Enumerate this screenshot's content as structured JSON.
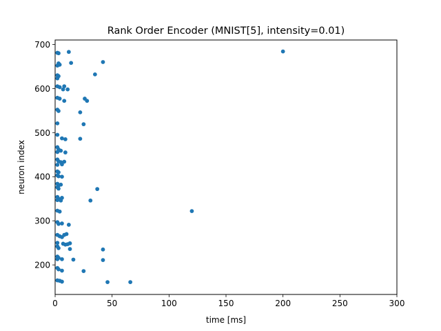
{
  "chart_data": {
    "type": "scatter",
    "title": "Rank Order Encoder (MNIST[5], intensity=0.01)",
    "xlabel": "time [ms]",
    "ylabel": "neuron index",
    "xlim": [
      0,
      300
    ],
    "ylim": [
      133,
      710
    ],
    "xticks": [
      0,
      50,
      100,
      150,
      200,
      250,
      300
    ],
    "yticks": [
      200,
      300,
      400,
      500,
      600,
      700
    ],
    "grid": false,
    "marker_color": "#1f77b4",
    "series": [
      {
        "points": [
          [
            2,
            681
          ],
          [
            3,
            680
          ],
          [
            12,
            683
          ],
          [
            200,
            684
          ],
          [
            3,
            657
          ],
          [
            4,
            654
          ],
          [
            2,
            652
          ],
          [
            14,
            658
          ],
          [
            42,
            660
          ],
          [
            2,
            630
          ],
          [
            3,
            628
          ],
          [
            35,
            632
          ],
          [
            2,
            623
          ],
          [
            2,
            605
          ],
          [
            4,
            603
          ],
          [
            8,
            605
          ],
          [
            7,
            598
          ],
          [
            11,
            598
          ],
          [
            2,
            579
          ],
          [
            4,
            577
          ],
          [
            8,
            572
          ],
          [
            26,
            577
          ],
          [
            28,
            572
          ],
          [
            2,
            552
          ],
          [
            3,
            549
          ],
          [
            22,
            546
          ],
          [
            2,
            521
          ],
          [
            25,
            519
          ],
          [
            2,
            495
          ],
          [
            6,
            487
          ],
          [
            9,
            485
          ],
          [
            22,
            486
          ],
          [
            2,
            467
          ],
          [
            3,
            462
          ],
          [
            5,
            459
          ],
          [
            2,
            456
          ],
          [
            9,
            455
          ],
          [
            2,
            439
          ],
          [
            3,
            435
          ],
          [
            5,
            433
          ],
          [
            8,
            434
          ],
          [
            6,
            428
          ],
          [
            2,
            427
          ],
          [
            2,
            412
          ],
          [
            3,
            410
          ],
          [
            2,
            403
          ],
          [
            3,
            401
          ],
          [
            6,
            400
          ],
          [
            2,
            384
          ],
          [
            3,
            380
          ],
          [
            5,
            382
          ],
          [
            2,
            376
          ],
          [
            3,
            373
          ],
          [
            37,
            372
          ],
          [
            2,
            354
          ],
          [
            3,
            350
          ],
          [
            6,
            352
          ],
          [
            2,
            347
          ],
          [
            5,
            346
          ],
          [
            31,
            346
          ],
          [
            2,
            323
          ],
          [
            4,
            321
          ],
          [
            120,
            322
          ],
          [
            2,
            297
          ],
          [
            3,
            293
          ],
          [
            6,
            294
          ],
          [
            12,
            291
          ],
          [
            2,
            268
          ],
          [
            4,
            265
          ],
          [
            6,
            263
          ],
          [
            8,
            268
          ],
          [
            10,
            270
          ],
          [
            2,
            250
          ],
          [
            7,
            248
          ],
          [
            9,
            246
          ],
          [
            11,
            247
          ],
          [
            13,
            249
          ],
          [
            2,
            242
          ],
          [
            3,
            238
          ],
          [
            13,
            236
          ],
          [
            42,
            235
          ],
          [
            2,
            219
          ],
          [
            3,
            216
          ],
          [
            2,
            213
          ],
          [
            6,
            213
          ],
          [
            16,
            212
          ],
          [
            42,
            211
          ],
          [
            2,
            193
          ],
          [
            3,
            190
          ],
          [
            6,
            187
          ],
          [
            25,
            186
          ],
          [
            2,
            165
          ],
          [
            4,
            164
          ],
          [
            6,
            162
          ],
          [
            46,
            161
          ],
          [
            66,
            161
          ]
        ]
      }
    ]
  }
}
